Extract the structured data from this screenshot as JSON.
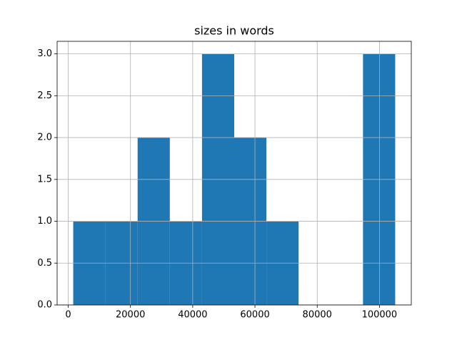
{
  "chart_data": {
    "type": "histogram",
    "title": "sizes in words",
    "bins": [
      1609,
      11954,
      22298,
      32643,
      42988,
      53333,
      63678,
      74022,
      84367,
      94712,
      105057
    ],
    "counts": [
      1,
      1,
      2,
      1,
      3,
      2,
      1,
      0,
      0,
      3
    ],
    "color": "#1f77b4",
    "xlim": [
      -3563,
      110229
    ],
    "xticks": [
      0,
      20000,
      40000,
      60000,
      80000,
      100000
    ],
    "ylim": [
      0,
      3.15
    ],
    "yticks": [
      {
        "value": 0,
        "label": "0.0"
      },
      0.5,
      {
        "value": 1,
        "label": "1.0"
      },
      1.5,
      {
        "value": 2,
        "label": "2.0"
      },
      2.5,
      {
        "value": 3,
        "label": "3.0"
      }
    ],
    "grid": true
  }
}
